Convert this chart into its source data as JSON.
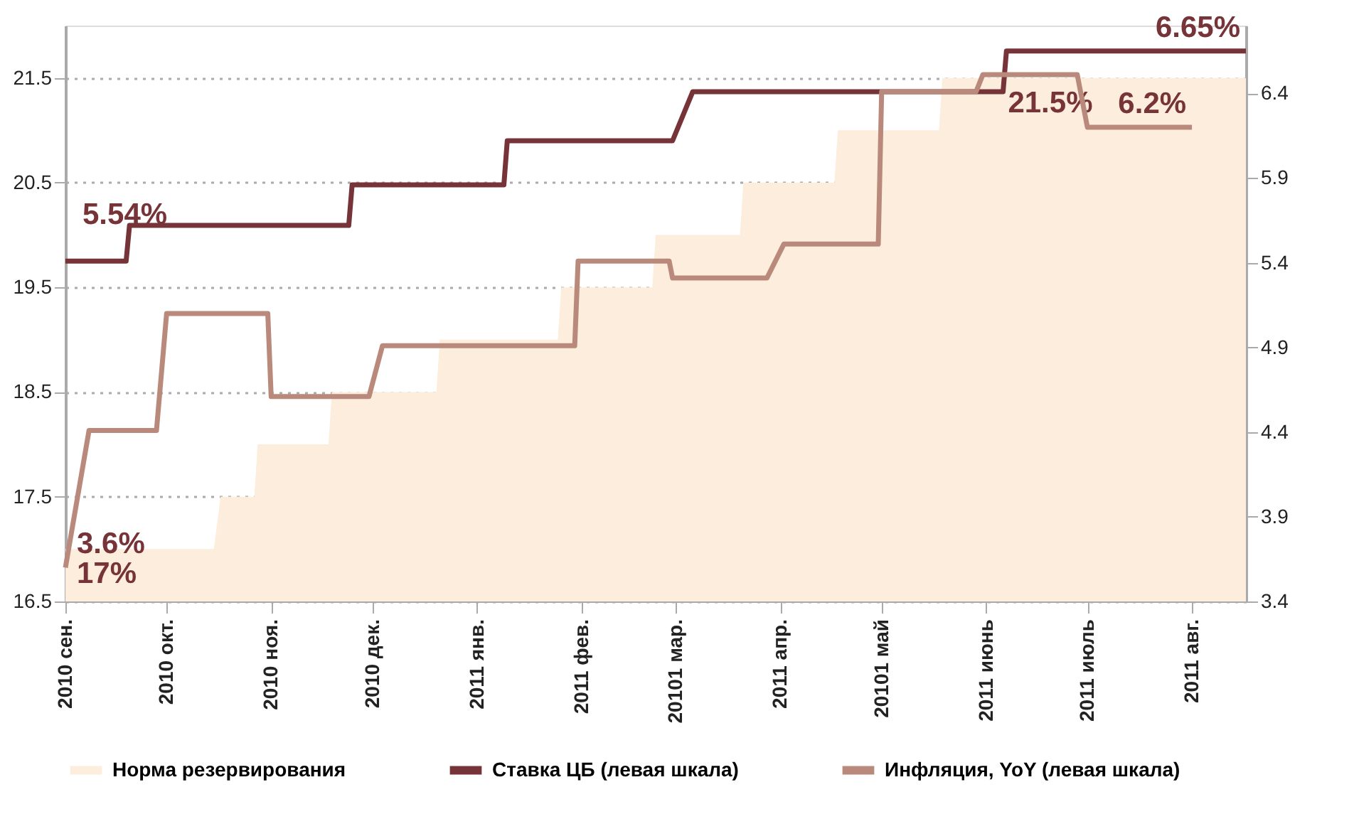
{
  "chart_data": {
    "type": "line",
    "xlim": [
      "2010-09-01",
      "2011-08-17"
    ],
    "xticks": [
      {
        "value": "2010-09-01",
        "label": "2010 сен."
      },
      {
        "value": "2010-10-01",
        "label": "2010 окт."
      },
      {
        "value": "2010-11-01",
        "label": "2010 ноя."
      },
      {
        "value": "2010-12-01",
        "label": "2010 дек."
      },
      {
        "value": "2011-01-01",
        "label": "2011 янв."
      },
      {
        "value": "2011-02-01",
        "label": "2011 фев."
      },
      {
        "value": "2011-03-01",
        "label": "20101 мар."
      },
      {
        "value": "2011-04-01",
        "label": "2011 апр."
      },
      {
        "value": "2011-05-01",
        "label": "20101 май"
      },
      {
        "value": "2011-06-01",
        "label": "2011 июнь"
      },
      {
        "value": "2011-07-01",
        "label": "2011 июль"
      },
      {
        "value": "2011-08-01",
        "label": "2011 авг."
      }
    ],
    "ylim": [
      16.5,
      22.0
    ],
    "yticks": [
      16.5,
      17.5,
      18.5,
      19.5,
      20.5,
      21.5
    ],
    "y2lim": [
      3.4,
      6.8
    ],
    "y2ticks": [
      3.4,
      3.9,
      4.4,
      4.9,
      5.4,
      5.9,
      6.4
    ],
    "grid": "y",
    "legend": "bottom",
    "line_style": "solid",
    "marker": "none",
    "annotations": [
      "5.54%"
    ],
    "series": [
      {
        "name": "Норма резервирования",
        "type": "area",
        "axis": "y",
        "color": "#fdeddd",
        "x": [
          "2010-09-01",
          "2010-10-15",
          "2010-10-17",
          "2010-10-27",
          "2010-10-28",
          "2010-11-18",
          "2010-11-19",
          "2010-12-20",
          "2010-12-21",
          "2011-01-25",
          "2011-01-26",
          "2011-02-22",
          "2011-02-23",
          "2011-03-20",
          "2011-03-21",
          "2011-04-17",
          "2011-04-18",
          "2011-05-18",
          "2011-05-19",
          "2011-06-20",
          "2011-08-17"
        ],
        "values": [
          17.0,
          17.0,
          17.5,
          17.5,
          18.0,
          18.0,
          18.5,
          18.5,
          19.0,
          19.0,
          19.5,
          19.5,
          20.0,
          20.0,
          20.5,
          20.5,
          21.0,
          21.0,
          21.5,
          21.5,
          21.5
        ],
        "value_labels": [
          "17%",
          null,
          null,
          null,
          null,
          null,
          null,
          null,
          null,
          null,
          null,
          null,
          null,
          null,
          null,
          null,
          null,
          null,
          null,
          "21.5%",
          null
        ]
      },
      {
        "name": "Ставка ЦБ (левая шкала)",
        "axis": "y2",
        "color": "#773438",
        "x": [
          "2010-09-01",
          "2010-09-19",
          "2010-09-20",
          "2010-11-24",
          "2010-11-25",
          "2011-01-09",
          "2011-01-10",
          "2011-02-28",
          "2011-03-06",
          "2011-06-06",
          "2011-06-07",
          "2011-08-17"
        ],
        "values": [
          5.41,
          5.41,
          5.62,
          5.62,
          5.86,
          5.86,
          6.12,
          6.12,
          6.41,
          6.41,
          6.65,
          6.65
        ],
        "value_labels": [
          null,
          null,
          null,
          null,
          null,
          null,
          null,
          null,
          null,
          null,
          null,
          "6.65%"
        ]
      },
      {
        "name": "Инфляция, YoY (левая шкала)",
        "axis": "y2",
        "color": "#b98a7c",
        "x": [
          "2010-09-01",
          "2010-09-08",
          "2010-09-28",
          "2010-10-01",
          "2010-10-31",
          "2010-11-01",
          "2010-11-30",
          "2010-12-04",
          "2011-01-30",
          "2011-01-31",
          "2011-02-27",
          "2011-02-28",
          "2011-03-28",
          "2011-04-02",
          "2011-04-30",
          "2011-05-01",
          "2011-05-29",
          "2011-05-31",
          "2011-06-28",
          "2011-07-01",
          "2011-08-01"
        ],
        "values": [
          3.6,
          4.41,
          4.41,
          5.1,
          5.1,
          4.61,
          4.61,
          4.91,
          4.91,
          5.41,
          5.41,
          5.31,
          5.31,
          5.51,
          5.51,
          6.41,
          6.41,
          6.51,
          6.51,
          6.2,
          6.2
        ],
        "value_labels": [
          "3.6%",
          null,
          null,
          null,
          null,
          null,
          null,
          null,
          null,
          null,
          null,
          null,
          null,
          null,
          null,
          null,
          null,
          null,
          null,
          null,
          "6.2%"
        ]
      }
    ]
  }
}
